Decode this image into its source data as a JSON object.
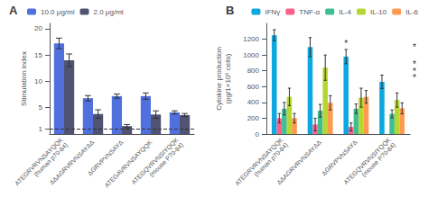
{
  "chart_data": [
    {
      "type": "bar",
      "title": "A",
      "categories": [
        "ATEGRVRVNSAYQQK\n(human p70-84)",
        "ΔΔAGRVRVNSAYΔΔ",
        "ΔGRVPVNSAYΔ",
        "ATEGAVRVNSAYQQK",
        "ATEGQVRVNSIYQQK\n(mouse P70-84)"
      ],
      "series": [
        {
          "name": "10.0 μg/ml",
          "values": [
            17.2,
            6.8,
            7.2,
            7.2,
            4.1
          ],
          "errors": [
            1.0,
            0.5,
            0.4,
            0.6,
            0.3
          ]
        },
        {
          "name": "2.0 μg/ml",
          "values": [
            14.0,
            3.8,
            1.5,
            3.7,
            3.6
          ],
          "errors": [
            1.2,
            0.8,
            0.3,
            0.7,
            0.3
          ]
        }
      ],
      "ylabel": "Stimulation index",
      "ylim": [
        0,
        21
      ],
      "yticks": [
        1,
        5,
        10,
        15,
        20
      ],
      "reference_y": 1,
      "legend": "top",
      "grid": false
    },
    {
      "type": "bar",
      "title": "B",
      "categories": [
        "ATEGRVRVNSAYQQK\n(human p70-84)",
        "ΔΔAGRVRVNSAYΔΔ",
        "ΔGRVPVNSAYΔ",
        "ATEGQVRVNSIYQQK\n(mouse P70-84)"
      ],
      "series": [
        {
          "name": "IFNγ",
          "values": [
            1250,
            1100,
            980,
            660
          ],
          "errors": [
            70,
            120,
            90,
            85
          ]
        },
        {
          "name": "TNF-α",
          "values": [
            200,
            120,
            90,
            0
          ],
          "errors": [
            60,
            80,
            50,
            0
          ]
        },
        {
          "name": "IL-4",
          "values": [
            320,
            295,
            320,
            255
          ],
          "errors": [
            80,
            80,
            60,
            50
          ]
        },
        {
          "name": "IL-10",
          "values": [
            470,
            840,
            460,
            430
          ],
          "errors": [
            110,
            160,
            120,
            90
          ]
        },
        {
          "name": "IL-6",
          "values": [
            200,
            395,
            470,
            325
          ],
          "errors": [
            60,
            90,
            80,
            70
          ]
        }
      ],
      "ylabel": "Cytokine production\n(pg/1×10⁶ cells)",
      "ylim": [
        0,
        1400
      ],
      "yticks": [
        0,
        200,
        400,
        600,
        800,
        1000,
        1200
      ],
      "annotations": [
        {
          "text": "*",
          "category": "ΔGRVPVNSAYΔ",
          "series": "IFNγ"
        },
        {
          "text": "*"
        },
        {
          "text": "*"
        },
        {
          "text": "*"
        },
        {
          "text": "*"
        }
      ],
      "legend": "top",
      "grid": false
    }
  ]
}
